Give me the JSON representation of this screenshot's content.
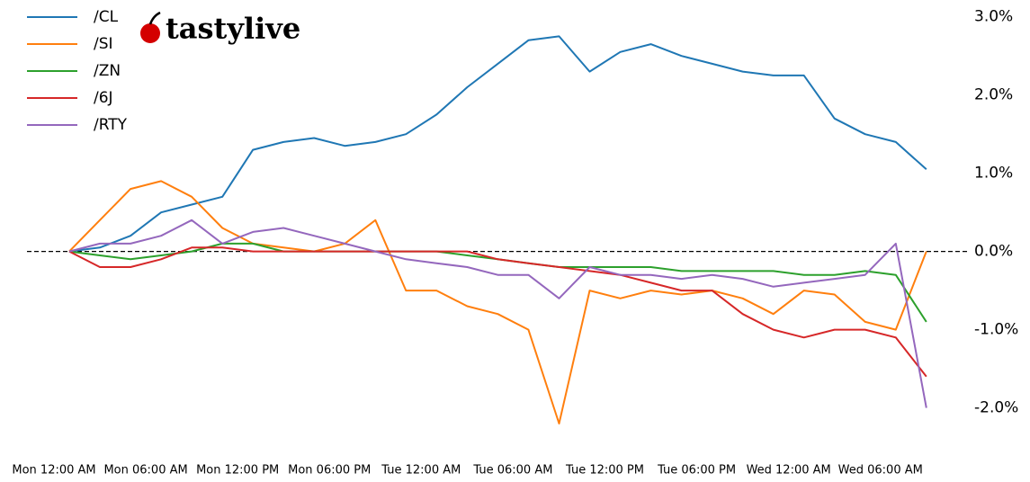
{
  "logo": "tastylive",
  "chart_data": {
    "type": "line",
    "x": [
      1,
      3,
      5,
      7,
      9,
      11,
      13,
      15,
      17,
      19,
      21,
      23,
      25,
      27,
      29,
      31,
      33,
      35,
      37,
      39,
      41,
      43,
      45,
      47,
      49,
      51,
      53,
      55,
      57
    ],
    "xlim": [
      0,
      57.6
    ],
    "xticks": [
      {
        "value": 0,
        "label": "Mon 12:00 AM"
      },
      {
        "value": 6,
        "label": "Mon 06:00 AM"
      },
      {
        "value": 12,
        "label": "Mon 12:00 PM"
      },
      {
        "value": 18,
        "label": "Mon 06:00 PM"
      },
      {
        "value": 24,
        "label": "Tue 12:00 AM"
      },
      {
        "value": 30,
        "label": "Tue 06:00 AM"
      },
      {
        "value": 36,
        "label": "Tue 12:00 PM"
      },
      {
        "value": 42,
        "label": "Tue 06:00 PM"
      },
      {
        "value": 48,
        "label": "Wed 12:00 AM"
      },
      {
        "value": 54,
        "label": "Wed 06:00 AM"
      }
    ],
    "ylim": [
      -2.2,
      3.1
    ],
    "yticks": [
      {
        "value": -2,
        "label": "-2.0%"
      },
      {
        "value": -1,
        "label": "-1.0%"
      },
      {
        "value": 0,
        "label": "0.0%"
      },
      {
        "value": 1,
        "label": "1.0%"
      },
      {
        "value": 2,
        "label": "2.0%"
      },
      {
        "value": 3,
        "label": "3.0%"
      }
    ],
    "reference_line": 0,
    "series": [
      {
        "name": "/CL",
        "color": "#1f77b4",
        "values": [
          0,
          0.05,
          0.2,
          0.5,
          0.6,
          0.7,
          1.3,
          1.4,
          1.45,
          1.35,
          1.4,
          1.5,
          1.75,
          2.1,
          2.4,
          2.7,
          2.75,
          2.3,
          2.55,
          2.65,
          2.5,
          2.4,
          2.3,
          2.25,
          2.25,
          1.7,
          1.5,
          1.4,
          1.05
        ]
      },
      {
        "name": "/SI",
        "color": "#ff7f0e",
        "values": [
          0,
          0.4,
          0.8,
          0.9,
          0.7,
          0.3,
          0.1,
          0.05,
          0,
          0.1,
          0.4,
          -0.5,
          -0.5,
          -0.7,
          -0.8,
          -1.0,
          -2.2,
          -0.5,
          -0.6,
          -0.5,
          -0.55,
          -0.5,
          -0.6,
          -0.8,
          -0.5,
          -0.55,
          -0.9,
          -1.0,
          0.0
        ]
      },
      {
        "name": "/ZN",
        "color": "#2ca02c",
        "values": [
          0,
          -0.05,
          -0.1,
          -0.05,
          0.0,
          0.1,
          0.1,
          0.0,
          0.0,
          0.0,
          0.0,
          0.0,
          0.0,
          -0.05,
          -0.1,
          -0.15,
          -0.2,
          -0.2,
          -0.2,
          -0.2,
          -0.25,
          -0.25,
          -0.25,
          -0.25,
          -0.3,
          -0.3,
          -0.25,
          -0.3,
          -0.9
        ]
      },
      {
        "name": "/6J",
        "color": "#d62728",
        "values": [
          0,
          -0.2,
          -0.2,
          -0.1,
          0.05,
          0.05,
          0.0,
          0.0,
          0.0,
          0.0,
          0.0,
          0.0,
          0.0,
          0.0,
          -0.1,
          -0.15,
          -0.2,
          -0.25,
          -0.3,
          -0.4,
          -0.5,
          -0.5,
          -0.8,
          -1.0,
          -1.1,
          -1.0,
          -1.0,
          -1.1,
          -1.6
        ]
      },
      {
        "name": "/RTY",
        "color": "#9467bd",
        "values": [
          0,
          0.1,
          0.1,
          0.2,
          0.4,
          0.1,
          0.25,
          0.3,
          0.2,
          0.1,
          0.0,
          -0.1,
          -0.15,
          -0.2,
          -0.3,
          -0.3,
          -0.6,
          -0.2,
          -0.3,
          -0.3,
          -0.35,
          -0.3,
          -0.35,
          -0.45,
          -0.4,
          -0.35,
          -0.3,
          0.1,
          -2.0
        ]
      }
    ]
  }
}
